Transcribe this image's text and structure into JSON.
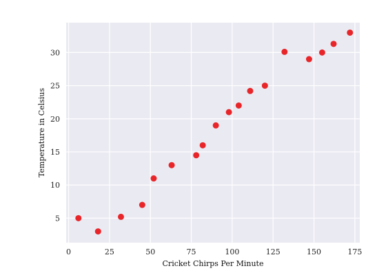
{
  "chart_data": {
    "type": "scatter",
    "title": "",
    "xlabel": "Cricket Chirps Per Minute",
    "ylabel": "Temperature in Celsius",
    "xlim": [
      -1.5,
      178
    ],
    "ylim": [
      1.3,
      34.5
    ],
    "xticks": [
      0,
      25,
      50,
      75,
      100,
      125,
      150,
      175
    ],
    "yticks": [
      5,
      10,
      15,
      20,
      25,
      30
    ],
    "grid": true,
    "legend": "none",
    "point_color": "#e8262a",
    "background_color": "#eaeaf2",
    "grid_color": "#ffffff",
    "x": [
      6,
      18,
      32,
      45,
      52,
      63,
      78,
      82,
      90,
      98,
      104,
      111,
      120,
      132,
      147,
      155,
      162,
      172
    ],
    "y": [
      5,
      3,
      5.2,
      7,
      11,
      13,
      14.5,
      16,
      19,
      21,
      22,
      24.2,
      25,
      30.1,
      29,
      30,
      31.3,
      33
    ]
  }
}
